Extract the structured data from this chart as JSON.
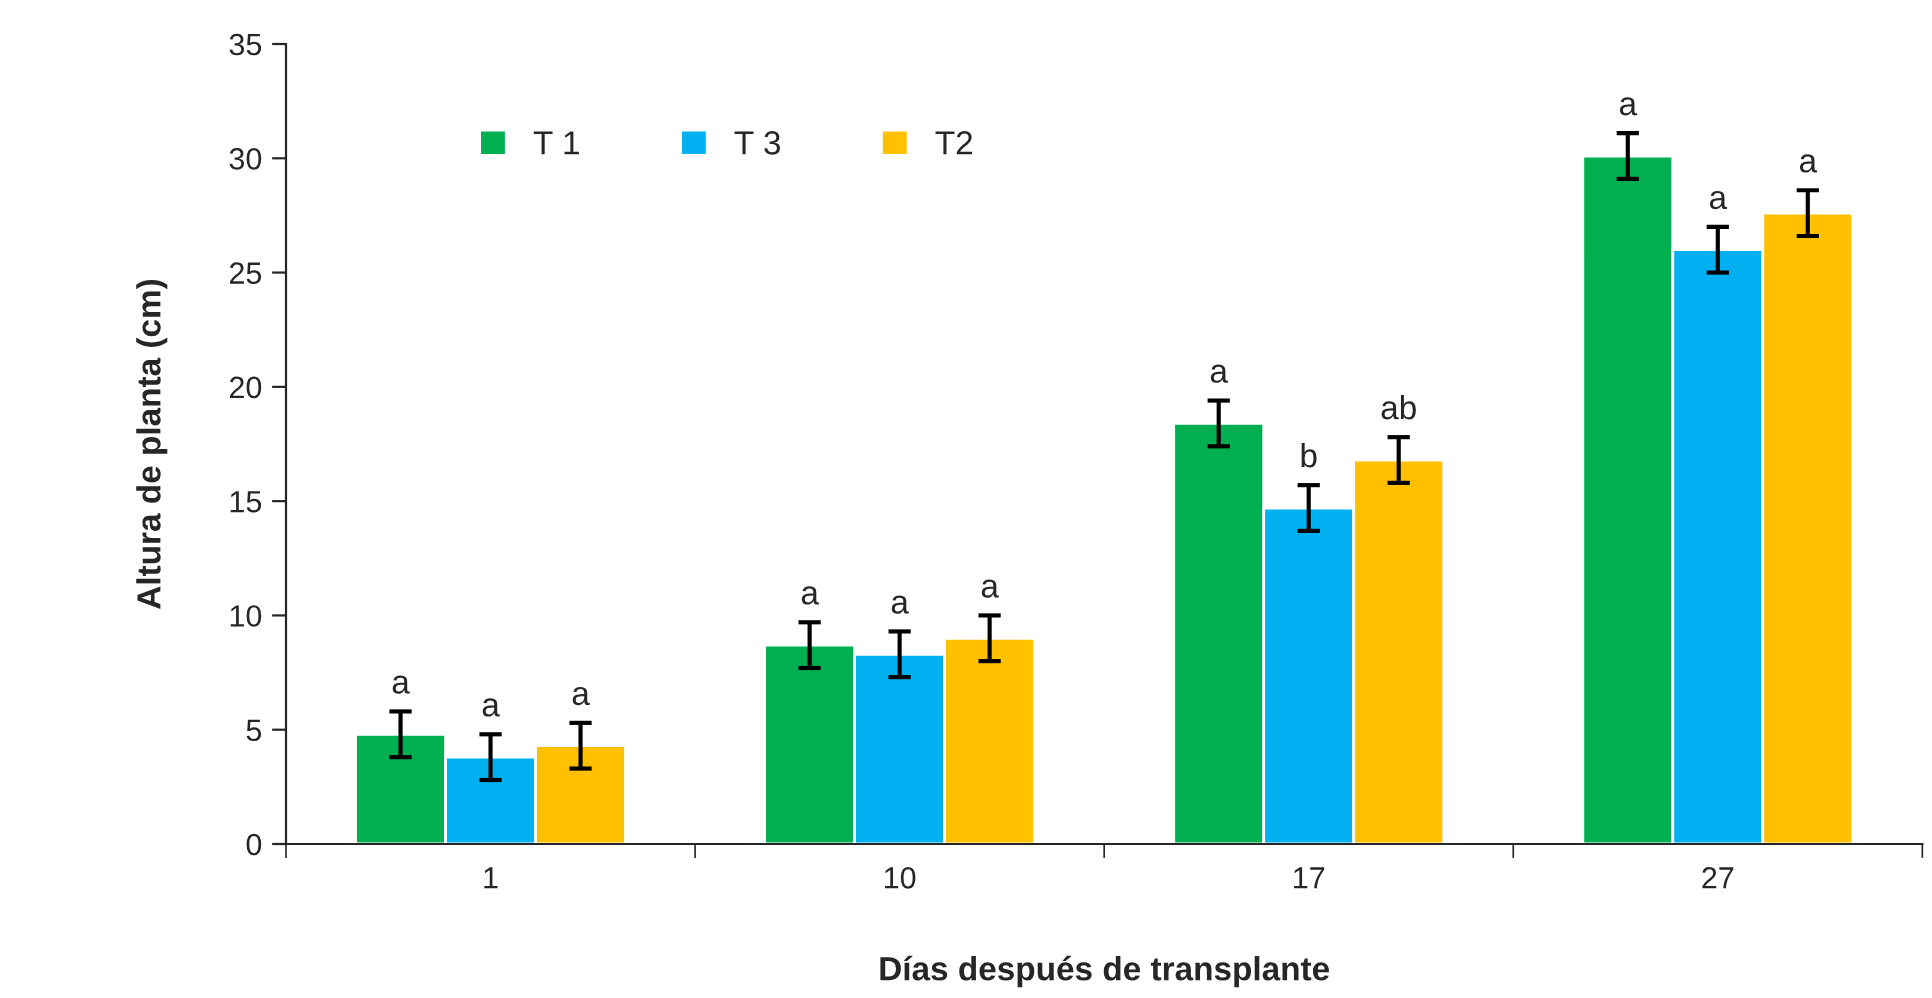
{
  "chart_data": {
    "type": "bar",
    "xlabel": "Días después de transplante",
    "ylabel": "Altura de planta (cm)",
    "categories": [
      "1",
      "10",
      "17",
      "27"
    ],
    "series": [
      {
        "name": "T 1",
        "color": "#00b050",
        "values": [
          4.8,
          8.7,
          18.4,
          30.1
        ],
        "errors": [
          1,
          1,
          1,
          1
        ],
        "value_labels": [
          "a",
          "a",
          "a",
          "a"
        ]
      },
      {
        "name": "T 3",
        "color": "#00b0f0",
        "values": [
          3.8,
          8.3,
          14.7,
          26.0
        ],
        "errors": [
          1,
          1,
          1,
          1
        ],
        "value_labels": [
          "a",
          "a",
          "b",
          "a"
        ]
      },
      {
        "name": "T2",
        "color": "#ffc000",
        "values": [
          4.3,
          9.0,
          16.8,
          27.6
        ],
        "errors": [
          1,
          1,
          1,
          1
        ],
        "value_labels": [
          "a",
          "a",
          "ab",
          "a"
        ]
      }
    ],
    "ylim": [
      0,
      35
    ],
    "yticks": [
      0,
      5,
      10,
      15,
      20,
      25,
      30,
      35
    ],
    "grid": false,
    "legend": "top left"
  }
}
